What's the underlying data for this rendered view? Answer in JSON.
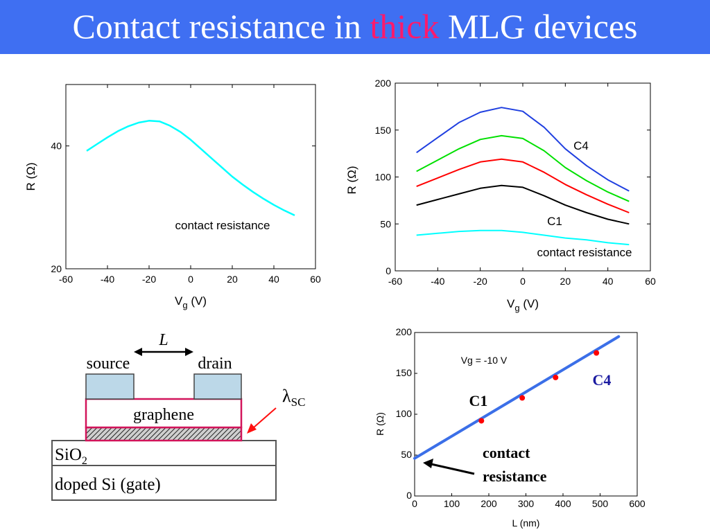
{
  "title": {
    "before": "Contact resistance in ",
    "highlight": "thick",
    "after": " MLG devices"
  },
  "colors": {
    "title_bar": "#3f6ff2",
    "highlight": "#ff1a6b",
    "cyan": "#00ffff",
    "blue": "#1f3fe0",
    "green": "#00e000",
    "red": "#ff0000",
    "black": "#000000",
    "fit_line": "#3b6fe8",
    "points": "#ff0000",
    "dark_blue_label": "#1a1aa0"
  },
  "chart_data": [
    {
      "type": "line",
      "xlabel_main": "V",
      "xlabel_sub": "g",
      "xlabel_unit": " (V)",
      "ylabel": "R (Ω)",
      "xlim": [
        -60,
        60
      ],
      "ylim": [
        20,
        50
      ],
      "xticks": [
        "-60",
        "-40",
        "-20",
        "0",
        "20",
        "40",
        "60"
      ],
      "xtick_values": [
        -60,
        -40,
        -20,
        0,
        20,
        40,
        60
      ],
      "yticks": [
        "20",
        "40"
      ],
      "ytick_values": [
        20,
        40
      ],
      "annotation": "contact resistance",
      "series": [
        {
          "color": "#00ffff",
          "x": [
            -50,
            -45,
            -40,
            -35,
            -30,
            -25,
            -20,
            -15,
            -10,
            -5,
            0,
            5,
            10,
            15,
            20,
            25,
            30,
            35,
            40,
            45,
            50
          ],
          "y": [
            39.2,
            40.3,
            41.4,
            42.4,
            43.2,
            43.8,
            44.1,
            44.0,
            43.3,
            42.3,
            41.0,
            39.5,
            38.0,
            36.5,
            35.0,
            33.7,
            32.5,
            31.4,
            30.4,
            29.5,
            28.7
          ]
        }
      ]
    },
    {
      "type": "line",
      "xlabel_main": "V",
      "xlabel_sub": "g",
      "xlabel_unit": " (V)",
      "ylabel": "R (Ω)",
      "xlim": [
        -60,
        60
      ],
      "ylim": [
        0,
        200
      ],
      "xticks": [
        "-60",
        "-40",
        "-20",
        "0",
        "20",
        "40",
        "60"
      ],
      "xtick_values": [
        -60,
        -40,
        -20,
        0,
        20,
        40,
        60
      ],
      "yticks": [
        "0",
        "50",
        "100",
        "150",
        "200"
      ],
      "ytick_values": [
        0,
        50,
        100,
        150,
        200
      ],
      "labels": {
        "c4": "C4",
        "c1": "C1",
        "contact": "contact resistance"
      },
      "series": [
        {
          "color": "#1f3fe0",
          "x": [
            -50,
            -40,
            -30,
            -20,
            -10,
            0,
            10,
            20,
            30,
            40,
            50
          ],
          "y": [
            126,
            142,
            158,
            169,
            174,
            170,
            153,
            130,
            112,
            97,
            85
          ]
        },
        {
          "color": "#00e000",
          "x": [
            -50,
            -40,
            -30,
            -20,
            -10,
            0,
            10,
            20,
            30,
            40,
            50
          ],
          "y": [
            106,
            118,
            130,
            140,
            144,
            141,
            128,
            110,
            96,
            84,
            74
          ]
        },
        {
          "color": "#ff0000",
          "x": [
            -50,
            -40,
            -30,
            -20,
            -10,
            0,
            10,
            20,
            30,
            40,
            50
          ],
          "y": [
            90,
            99,
            108,
            116,
            119,
            116,
            105,
            92,
            81,
            71,
            62
          ]
        },
        {
          "color": "#000000",
          "x": [
            -50,
            -40,
            -30,
            -20,
            -10,
            0,
            10,
            20,
            30,
            40,
            50
          ],
          "y": [
            70,
            76,
            82,
            88,
            91,
            89,
            80,
            70,
            62,
            55,
            50
          ]
        },
        {
          "color": "#00ffff",
          "x": [
            -50,
            -40,
            -30,
            -20,
            -10,
            0,
            10,
            20,
            30,
            40,
            50
          ],
          "y": [
            38,
            40,
            42,
            43,
            43,
            41,
            38,
            35,
            33,
            30,
            28
          ]
        }
      ]
    },
    {
      "type": "scatter",
      "xlabel": "L (nm)",
      "ylabel": "R (Ω)",
      "xlim": [
        0,
        600
      ],
      "ylim": [
        0,
        200
      ],
      "xticks": [
        "0",
        "100",
        "200",
        "300",
        "400",
        "500",
        "600"
      ],
      "xtick_values": [
        0,
        100,
        200,
        300,
        400,
        500,
        600
      ],
      "yticks": [
        "0",
        "50",
        "100",
        "150",
        "200"
      ],
      "ytick_values": [
        0,
        50,
        100,
        150,
        200
      ],
      "annotation": "Vg = -10 V",
      "points": {
        "x": [
          180,
          290,
          380,
          490
        ],
        "y": [
          92,
          120,
          145,
          175
        ]
      },
      "fit_line": {
        "x": [
          0,
          550
        ],
        "y": [
          46,
          195
        ]
      },
      "labels": {
        "c1": "C1",
        "c4": "C4",
        "contact_line1": "contact",
        "contact_line2": "resistance"
      }
    }
  ],
  "diagram": {
    "length_label": "L",
    "source": "source",
    "drain": "drain",
    "graphene": "graphene",
    "sio2_main": "SiO",
    "sio2_sub": "2",
    "gate": "doped Si (gate)",
    "lambda_main": "λ",
    "lambda_sub": "SC"
  }
}
